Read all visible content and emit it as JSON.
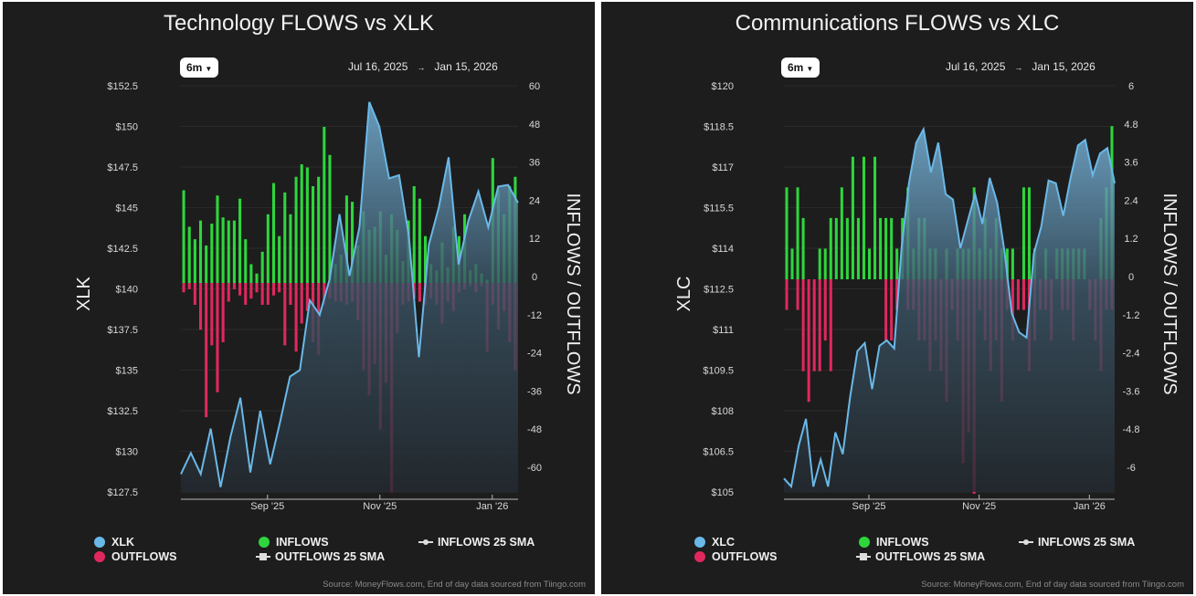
{
  "source": "Source: MoneyFlows.com, End of day data sourced from Tiingo.com",
  "colors": {
    "background": "#1d1d1d",
    "price_line": "#6ab8e8",
    "inflows": "#2ed63c",
    "outflows": "#e0285e"
  },
  "charts": [
    {
      "title": "Technology FLOWS vs XLK",
      "range_button": "6m",
      "date_from": "Jul 16, 2025",
      "date_arrow": "→",
      "date_to": "Jan 15, 2026",
      "left_axis_label": "XLK",
      "right_axis_label": "INFLOWS / OUTFLOWS",
      "legend": {
        "price": "XLK",
        "inflows": "INFLOWS",
        "outflows": "OUTFLOWS",
        "inflows_sma": "INFLOWS 25 SMA",
        "outflows_sma": "OUTFLOWS 25 SMA"
      }
    },
    {
      "title": "Communications FLOWS vs XLC",
      "range_button": "6m",
      "date_from": "Jul 16, 2025",
      "date_arrow": "→",
      "date_to": "Jan 15, 2026",
      "left_axis_label": "XLC",
      "right_axis_label": "INFLOWS / OUTFLOWS",
      "legend": {
        "price": "XLC",
        "inflows": "INFLOWS",
        "outflows": "OUTFLOWS",
        "inflows_sma": "INFLOWS 25 SMA",
        "outflows_sma": "OUTFLOWS 25 SMA"
      }
    }
  ],
  "chart_data": [
    {
      "type": "bar+area",
      "title": "Technology FLOWS vs XLK",
      "x_range": [
        "2025-07-16",
        "2026-01-15"
      ],
      "x_ticks": [
        {
          "label": "Sep '25",
          "date": "2025-09-01"
        },
        {
          "label": "Nov '25",
          "date": "2025-11-01"
        },
        {
          "label": "Jan '26",
          "date": "2026-01-01"
        }
      ],
      "left_axis": {
        "label": "XLK",
        "ylim": [
          127.5,
          152.5
        ],
        "ticks": [
          "$152.5",
          "$150",
          "$147.5",
          "$145",
          "$142.5",
          "$140",
          "$137.5",
          "$135",
          "$132.5",
          "$130",
          "$127.5"
        ]
      },
      "right_axis": {
        "label": "INFLOWS / OUTFLOWS",
        "ylim": [
          -60,
          60
        ],
        "ticks": [
          "60",
          "48",
          "36",
          "24",
          "12",
          "0",
          "-12",
          "-24",
          "-36",
          "-48",
          "-60"
        ]
      },
      "price_series": {
        "name": "XLK",
        "values": [
          128.6,
          129.9,
          128.6,
          131.4,
          127.8,
          130.9,
          133.3,
          128.7,
          132.5,
          129.2,
          131.8,
          134.6,
          135.0,
          139.3,
          138.4,
          140.6,
          144.6,
          140.8,
          143.8,
          151.5,
          150.0,
          146.8,
          147.0,
          143.2,
          135.8,
          142.7,
          145.0,
          148.1,
          141.5,
          144.2,
          146.0,
          143.8,
          146.3,
          146.4,
          145.3
        ]
      },
      "inflows": {
        "name": "INFLOWS",
        "values": [
          29.7,
          18,
          14,
          20,
          12,
          19,
          28,
          21,
          20,
          20,
          27,
          14,
          6,
          3,
          10,
          22,
          32,
          15,
          29,
          22,
          34,
          38,
          37,
          31,
          34,
          50,
          41,
          6,
          9,
          28,
          26,
          12,
          23,
          17,
          18,
          23,
          9,
          22,
          17,
          7,
          20,
          31,
          27,
          15,
          6,
          4,
          13,
          5,
          18,
          15,
          22,
          4,
          6,
          3,
          1,
          40,
          30,
          22,
          31,
          34
        ]
      },
      "outflows": {
        "name": "OUTFLOWS",
        "values": [
          -3,
          -2,
          -7,
          -15,
          -43,
          -20,
          -35,
          -19,
          -6,
          -2,
          -4,
          -7,
          -5,
          -3,
          -7,
          -7,
          -4,
          -3,
          -20,
          -7,
          -22,
          -13,
          -9,
          -19,
          -23,
          -7,
          -5,
          -6,
          -6,
          -7,
          -6,
          -12,
          -28,
          -36,
          -26,
          -47,
          -32,
          -67,
          -16,
          -7,
          -6,
          -5,
          -6,
          -7,
          -5,
          -7,
          -13,
          -6,
          -9,
          -3,
          -2,
          -1,
          -3,
          -1,
          -22,
          -7,
          -15,
          -9,
          -19,
          -28
        ]
      },
      "legend": [
        "XLK",
        "OUTFLOWS",
        "INFLOWS",
        "OUTFLOWS 25 SMA",
        "INFLOWS 25 SMA"
      ],
      "legend_position": "bottom",
      "grid": true
    },
    {
      "type": "bar+area",
      "title": "Communications FLOWS vs XLC",
      "x_range": [
        "2025-07-16",
        "2026-01-15"
      ],
      "x_ticks": [
        {
          "label": "Sep '25",
          "date": "2025-09-01"
        },
        {
          "label": "Nov '25",
          "date": "2025-11-01"
        },
        {
          "label": "Jan '26",
          "date": "2026-01-01"
        }
      ],
      "left_axis": {
        "label": "XLC",
        "ylim": [
          105,
          120
        ],
        "ticks": [
          "$120",
          "$118.5",
          "$117",
          "$115.5",
          "$114",
          "$112.5",
          "$111",
          "$109.5",
          "$108",
          "$106.5",
          "$105"
        ]
      },
      "right_axis": {
        "label": "INFLOWS / OUTFLOWS",
        "ylim": [
          -6,
          6
        ],
        "ticks": [
          "6",
          "4.8",
          "3.6",
          "2.4",
          "1.2",
          "0",
          "-1.2",
          "-2.4",
          "-3.6",
          "-4.8",
          "-6"
        ]
      },
      "price_series": {
        "name": "XLC",
        "values": [
          105.5,
          105.2,
          106.7,
          107.7,
          105.2,
          106.2,
          105.2,
          107.2,
          106.4,
          108.5,
          110.2,
          110.5,
          108.8,
          110.4,
          110.6,
          110.3,
          114.0,
          116.4,
          117.9,
          118.4,
          116.8,
          117.9,
          116.0,
          115.8,
          114.0,
          115.0,
          116.0,
          114.9,
          116.6,
          115.7,
          113.9,
          111.6,
          110.9,
          110.7,
          113.8,
          114.8,
          116.5,
          116.4,
          115.2,
          116.6,
          117.8,
          118.0,
          116.7,
          117.5,
          117.7,
          116.4
        ]
      },
      "inflows": {
        "name": "INFLOWS",
        "values": [
          3,
          1,
          3,
          2,
          0,
          0,
          1,
          1,
          2,
          2,
          3,
          2,
          4,
          2,
          4,
          1,
          4,
          2,
          2,
          2,
          1,
          2,
          3,
          1,
          2,
          2,
          1,
          1,
          0,
          1,
          0,
          1,
          1,
          1,
          3,
          1,
          2,
          1,
          2,
          1,
          1,
          1,
          0,
          3,
          3,
          1,
          0,
          1,
          0,
          1,
          1,
          1,
          1,
          1,
          1,
          0,
          0,
          2,
          3,
          5
        ]
      },
      "outflows": {
        "name": "OUTFLOWS",
        "values": [
          -1,
          0,
          -1,
          -3,
          -4,
          -3,
          -3,
          -2,
          -3,
          0,
          0,
          0,
          0,
          0,
          0,
          0,
          0,
          0,
          -2,
          -2,
          -1,
          0,
          -1,
          -1,
          -2,
          -2,
          -3,
          -2,
          -3,
          -4,
          -1,
          -2,
          -6,
          -5,
          -7,
          -1,
          -2,
          -3,
          -2,
          -4,
          -1,
          -2,
          -1,
          -1,
          -3,
          -2,
          -1,
          -1,
          -2,
          0,
          -1,
          -1,
          -2,
          0,
          0,
          -1,
          -2,
          -3,
          -1,
          -1
        ]
      },
      "legend": [
        "XLC",
        "OUTFLOWS",
        "INFLOWS",
        "OUTFLOWS 25 SMA",
        "INFLOWS 25 SMA"
      ],
      "legend_position": "bottom",
      "grid": true
    }
  ]
}
